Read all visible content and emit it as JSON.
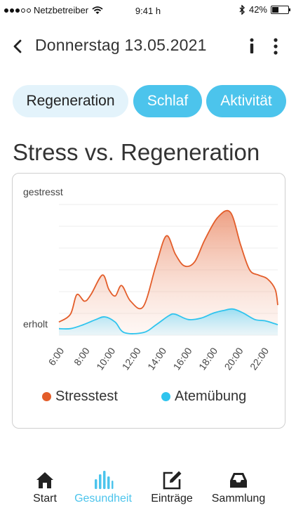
{
  "status_bar": {
    "carrier": "Netzbetreiber",
    "time": "9:41 h",
    "battery": "42%",
    "battery_level": 0.42
  },
  "header": {
    "title": "Donnerstag 13.05.2021",
    "back_icon": "chevron-left-icon",
    "info_icon": "info-icon",
    "more_icon": "more-vertical-icon"
  },
  "tabs": [
    {
      "label": "Regeneration",
      "active": true
    },
    {
      "label": "Schlaf",
      "active": false
    },
    {
      "label": "Aktivität",
      "active": false
    }
  ],
  "chart_heading": "Stress vs. Regeneration",
  "chart_data": {
    "type": "area",
    "title": "",
    "y_top_label": "gestresst",
    "y_bottom_label": "erholt",
    "x_ticks": [
      "6:00",
      "8:00",
      "10:00",
      "12:00",
      "14:00",
      "16:00",
      "18:00",
      "20:00",
      "22:00"
    ],
    "xlim": [
      5.9,
      23.0
    ],
    "ylim": [
      0,
      100
    ],
    "grid": true,
    "legend_position": "bottom",
    "series": [
      {
        "name": "Stresstest",
        "color": "#e35d2a",
        "x": [
          5.9,
          6.8,
          7.3,
          7.9,
          8.4,
          9.3,
          9.8,
          10.3,
          10.8,
          11.5,
          12.5,
          13.5,
          14.3,
          15.0,
          15.7,
          16.5,
          17.3,
          18.3,
          19.3,
          20.1,
          20.8,
          21.5,
          22.2,
          22.8,
          23.0
        ],
        "y": [
          10,
          16,
          31,
          26,
          31,
          46,
          35,
          30,
          38,
          26,
          22,
          54,
          76,
          62,
          53,
          56,
          73,
          90,
          94,
          69,
          50,
          46,
          43,
          35,
          23
        ]
      },
      {
        "name": "Atemübung",
        "color": "#2fc4ee",
        "x": [
          5.9,
          6.8,
          7.8,
          8.8,
          9.5,
          10.3,
          11.0,
          12.5,
          13.5,
          14.5,
          15.0,
          16.0,
          17.0,
          18.0,
          18.8,
          19.5,
          20.3,
          21.2,
          22.0,
          22.7,
          23.0
        ],
        "y": [
          5,
          5,
          8,
          12,
          14,
          10,
          2,
          2,
          8,
          15,
          16,
          12,
          13,
          17,
          19,
          20,
          17,
          12,
          11,
          9,
          8
        ]
      }
    ]
  },
  "bottom_nav": [
    {
      "label": "Start",
      "icon": "home-icon",
      "active": false
    },
    {
      "label": "Gesundheit",
      "icon": "bar-chart-icon",
      "active": true
    },
    {
      "label": "Einträge",
      "icon": "edit-icon",
      "active": false
    },
    {
      "label": "Sammlung",
      "icon": "inbox-icon",
      "active": false
    }
  ],
  "colors": {
    "accent": "#4cc4ec",
    "stress": "#e35d2a",
    "breath": "#2fc4ee",
    "tab_active_bg": "#e3f3fb"
  }
}
